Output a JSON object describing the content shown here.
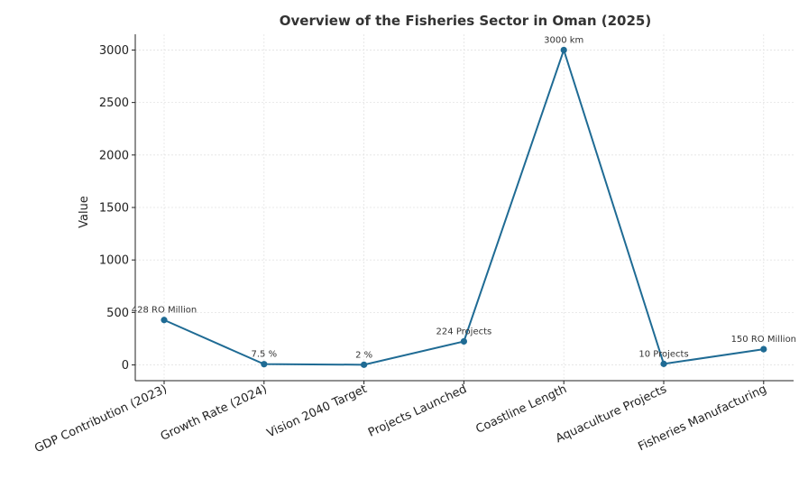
{
  "chart_data": {
    "type": "line",
    "title": "Overview of the Fisheries Sector in Oman (2025)",
    "xlabel": "",
    "ylabel": "Value",
    "ylim": [
      -150,
      3150
    ],
    "yticks": [
      0,
      500,
      1000,
      1500,
      2000,
      2500,
      3000
    ],
    "categories": [
      "GDP Contribution (2023)",
      "Growth Rate (2024)",
      "Vision 2040 Target",
      "Projects Launched",
      "Coastline Length",
      "Aquaculture Projects",
      "Fisheries Manufacturing"
    ],
    "series": [
      {
        "values": [
          428,
          7.5,
          2,
          224,
          3000,
          10,
          150
        ],
        "color": "#1f6b94"
      }
    ],
    "data_labels": [
      "428 RO Million",
      "7.5 %",
      "2 %",
      "224 Projects",
      "3000 km",
      "10 Projects",
      "150 RO Million"
    ],
    "grid": true,
    "legend": "none"
  }
}
